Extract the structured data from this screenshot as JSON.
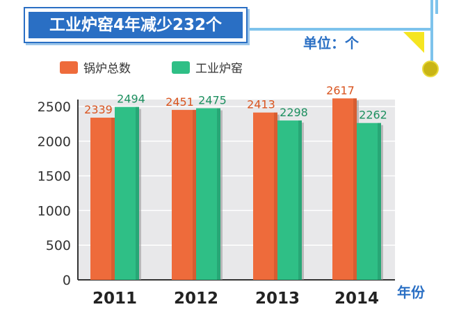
{
  "title": "工业炉窑4年减少232个",
  "unit_label": "单位：个",
  "x_unit_label": "年份",
  "colors": {
    "boiler": "#ee6b3b",
    "kiln": "#2fbf86",
    "accent": "#2a6fc4"
  },
  "chart_data": {
    "type": "bar",
    "categories": [
      "2011",
      "2012",
      "2013",
      "2014"
    ],
    "series": [
      {
        "name": "锅炉总数",
        "values": [
          2339,
          2451,
          2413,
          2617
        ]
      },
      {
        "name": "工业炉窑",
        "values": [
          2494,
          2475,
          2298,
          2262
        ]
      }
    ],
    "yticks": [
      0,
      500,
      1000,
      1500,
      2000,
      2500
    ],
    "ylim": [
      0,
      2500
    ],
    "grid": true,
    "legend_position": "top-left"
  }
}
